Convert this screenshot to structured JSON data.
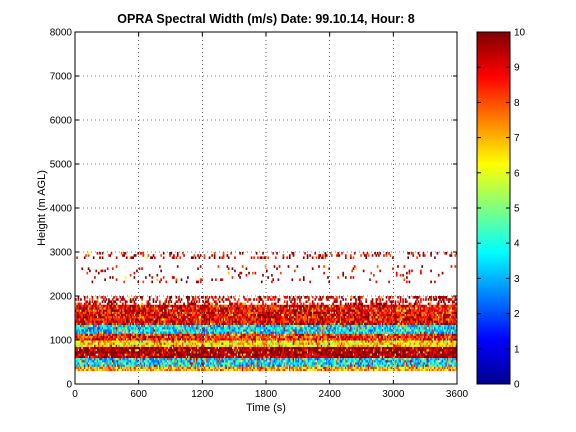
{
  "chart_data": {
    "type": "heatmap",
    "title": "OPRA Spectral Width (m/s)  Date: 99.10.14, Hour: 8",
    "xlabel": "Time (s)",
    "ylabel": "Height (m AGL)",
    "xlim": [
      0,
      3600
    ],
    "ylim": [
      0,
      8000
    ],
    "x_ticks": [
      0,
      600,
      1200,
      1800,
      2400,
      3000,
      3600
    ],
    "y_ticks": [
      0,
      1000,
      2000,
      3000,
      4000,
      5000,
      6000,
      7000,
      8000
    ],
    "grid": "dotted",
    "colormap": "jet",
    "colorbar": {
      "range": [
        0,
        10
      ],
      "ticks": [
        0,
        1,
        2,
        3,
        4,
        5,
        6,
        7,
        8,
        9,
        10
      ]
    },
    "layers": [
      {
        "height_range": [
          300,
          400
        ],
        "dominant_value": 7.0,
        "description": "yellow/orange"
      },
      {
        "height_range": [
          400,
          600
        ],
        "dominant_value": 3.5,
        "description": "cyan"
      },
      {
        "height_range": [
          600,
          850
        ],
        "dominant_value": 10.0,
        "description": "dark red"
      },
      {
        "height_range": [
          850,
          1000
        ],
        "dominant_value": 6.5,
        "description": "yellow"
      },
      {
        "height_range": [
          1000,
          1150
        ],
        "dominant_value": 8.5,
        "description": "red/orange"
      },
      {
        "height_range": [
          1150,
          1350
        ],
        "dominant_value": 3.5,
        "description": "cyan"
      },
      {
        "height_range": [
          1350,
          1800
        ],
        "dominant_value": 9.0,
        "description": "red/orange with yellow"
      },
      {
        "height_range": [
          1800,
          2000
        ],
        "dominant_value": 9.5,
        "description": "sparse red"
      },
      {
        "height_range": [
          2300,
          2700
        ],
        "dominant_value": 9.5,
        "description": "very sparse red"
      },
      {
        "height_range": [
          2850,
          3000
        ],
        "dominant_value": 9.5,
        "description": "sparse red"
      }
    ]
  }
}
